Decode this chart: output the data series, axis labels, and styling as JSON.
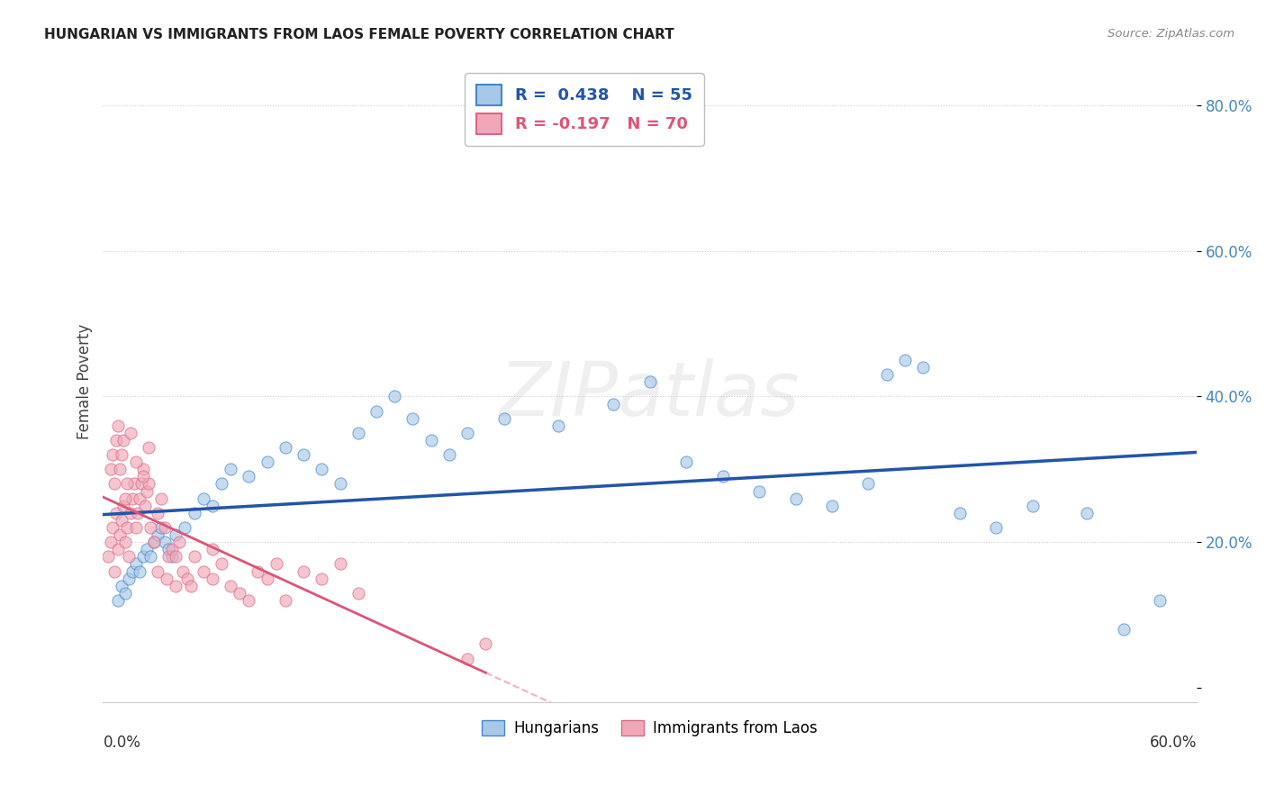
{
  "title": "HUNGARIAN VS IMMIGRANTS FROM LAOS FEMALE POVERTY CORRELATION CHART",
  "source": "Source: ZipAtlas.com",
  "ylabel": "Female Poverty",
  "xmin": 0.0,
  "xmax": 0.6,
  "ymin": -0.02,
  "ymax": 0.86,
  "ytick_vals": [
    0.0,
    0.2,
    0.4,
    0.6,
    0.8
  ],
  "ytick_labels": [
    "",
    "20.0%",
    "40.0%",
    "60.0%",
    "80.0%"
  ],
  "watermark": "ZIPatlas",
  "blue_R": "0.438",
  "blue_N": "55",
  "pink_R": "-0.197",
  "pink_N": "70",
  "blue_color": "#a8c8e8",
  "pink_color": "#f0a8b8",
  "blue_edge_color": "#4488cc",
  "pink_edge_color": "#dd6688",
  "blue_line_color": "#2255aa",
  "pink_line_color": "#dd5577",
  "legend_blue_label": "Hungarians",
  "legend_pink_label": "Immigrants from Laos",
  "blue_x": [
    0.008,
    0.01,
    0.012,
    0.014,
    0.016,
    0.018,
    0.02,
    0.022,
    0.024,
    0.026,
    0.028,
    0.03,
    0.032,
    0.034,
    0.036,
    0.038,
    0.04,
    0.045,
    0.05,
    0.055,
    0.06,
    0.065,
    0.07,
    0.08,
    0.09,
    0.1,
    0.11,
    0.12,
    0.13,
    0.14,
    0.15,
    0.16,
    0.17,
    0.18,
    0.19,
    0.2,
    0.22,
    0.25,
    0.28,
    0.3,
    0.32,
    0.34,
    0.36,
    0.38,
    0.4,
    0.42,
    0.43,
    0.44,
    0.45,
    0.47,
    0.49,
    0.51,
    0.54,
    0.56,
    0.58
  ],
  "blue_y": [
    0.12,
    0.14,
    0.13,
    0.15,
    0.16,
    0.17,
    0.16,
    0.18,
    0.19,
    0.18,
    0.2,
    0.21,
    0.22,
    0.2,
    0.19,
    0.18,
    0.21,
    0.22,
    0.24,
    0.26,
    0.25,
    0.28,
    0.3,
    0.29,
    0.31,
    0.33,
    0.32,
    0.3,
    0.28,
    0.35,
    0.38,
    0.4,
    0.37,
    0.34,
    0.32,
    0.35,
    0.37,
    0.36,
    0.39,
    0.42,
    0.31,
    0.29,
    0.27,
    0.26,
    0.25,
    0.28,
    0.43,
    0.45,
    0.44,
    0.24,
    0.22,
    0.25,
    0.24,
    0.08,
    0.12
  ],
  "pink_x": [
    0.003,
    0.004,
    0.005,
    0.006,
    0.007,
    0.008,
    0.009,
    0.01,
    0.011,
    0.012,
    0.013,
    0.014,
    0.015,
    0.016,
    0.017,
    0.018,
    0.019,
    0.02,
    0.021,
    0.022,
    0.023,
    0.024,
    0.025,
    0.026,
    0.028,
    0.03,
    0.032,
    0.034,
    0.036,
    0.038,
    0.04,
    0.042,
    0.044,
    0.046,
    0.048,
    0.05,
    0.055,
    0.06,
    0.065,
    0.07,
    0.075,
    0.08,
    0.085,
    0.09,
    0.095,
    0.1,
    0.11,
    0.12,
    0.13,
    0.14,
    0.004,
    0.005,
    0.006,
    0.007,
    0.008,
    0.009,
    0.01,
    0.011,
    0.012,
    0.013,
    0.015,
    0.018,
    0.022,
    0.025,
    0.03,
    0.035,
    0.04,
    0.2,
    0.21,
    0.06
  ],
  "pink_y": [
    0.18,
    0.2,
    0.22,
    0.16,
    0.24,
    0.19,
    0.21,
    0.23,
    0.25,
    0.2,
    0.22,
    0.18,
    0.24,
    0.26,
    0.28,
    0.22,
    0.24,
    0.26,
    0.28,
    0.3,
    0.25,
    0.27,
    0.28,
    0.22,
    0.2,
    0.24,
    0.26,
    0.22,
    0.18,
    0.19,
    0.18,
    0.2,
    0.16,
    0.15,
    0.14,
    0.18,
    0.16,
    0.15,
    0.17,
    0.14,
    0.13,
    0.12,
    0.16,
    0.15,
    0.17,
    0.12,
    0.16,
    0.15,
    0.17,
    0.13,
    0.3,
    0.32,
    0.28,
    0.34,
    0.36,
    0.3,
    0.32,
    0.34,
    0.26,
    0.28,
    0.35,
    0.31,
    0.29,
    0.33,
    0.16,
    0.15,
    0.14,
    0.04,
    0.06,
    0.19
  ]
}
